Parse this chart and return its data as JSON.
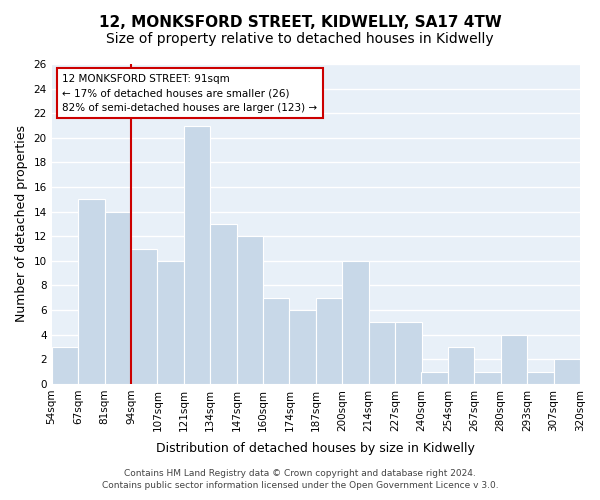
{
  "title": "12, MONKSFORD STREET, KIDWELLY, SA17 4TW",
  "subtitle": "Size of property relative to detached houses in Kidwelly",
  "xlabel": "Distribution of detached houses by size in Kidwelly",
  "ylabel": "Number of detached properties",
  "bar_color": "#c8d8e8",
  "bar_edge_color": "#ffffff",
  "background_color": "#ffffff",
  "grid_color": "#ffffff",
  "plot_bg_color": "#e8f0f8",
  "bin_labels": [
    "54sqm",
    "67sqm",
    "81sqm",
    "94sqm",
    "107sqm",
    "121sqm",
    "134sqm",
    "147sqm",
    "160sqm",
    "174sqm",
    "187sqm",
    "200sqm",
    "214sqm",
    "227sqm",
    "240sqm",
    "254sqm",
    "267sqm",
    "280sqm",
    "293sqm",
    "307sqm",
    "320sqm"
  ],
  "values": [
    3,
    15,
    14,
    11,
    10,
    21,
    13,
    12,
    7,
    6,
    7,
    10,
    5,
    5,
    1,
    3,
    1,
    4,
    1,
    2
  ],
  "ylim": [
    0,
    26
  ],
  "yticks": [
    0,
    2,
    4,
    6,
    8,
    10,
    12,
    14,
    16,
    18,
    20,
    22,
    24,
    26
  ],
  "vline_color": "#cc0000",
  "annotation_title": "12 MONKSFORD STREET: 91sqm",
  "annotation_line1": "← 17% of detached houses are smaller (26)",
  "annotation_line2": "82% of semi-detached houses are larger (123) →",
  "annotation_box_color": "#ffffff",
  "annotation_box_edge": "#cc0000",
  "footer_line1": "Contains HM Land Registry data © Crown copyright and database right 2024.",
  "footer_line2": "Contains public sector information licensed under the Open Government Licence v 3.0.",
  "title_fontsize": 11,
  "subtitle_fontsize": 10,
  "axis_label_fontsize": 9,
  "tick_fontsize": 7.5,
  "annotation_fontsize": 7.5,
  "footer_fontsize": 6.5
}
